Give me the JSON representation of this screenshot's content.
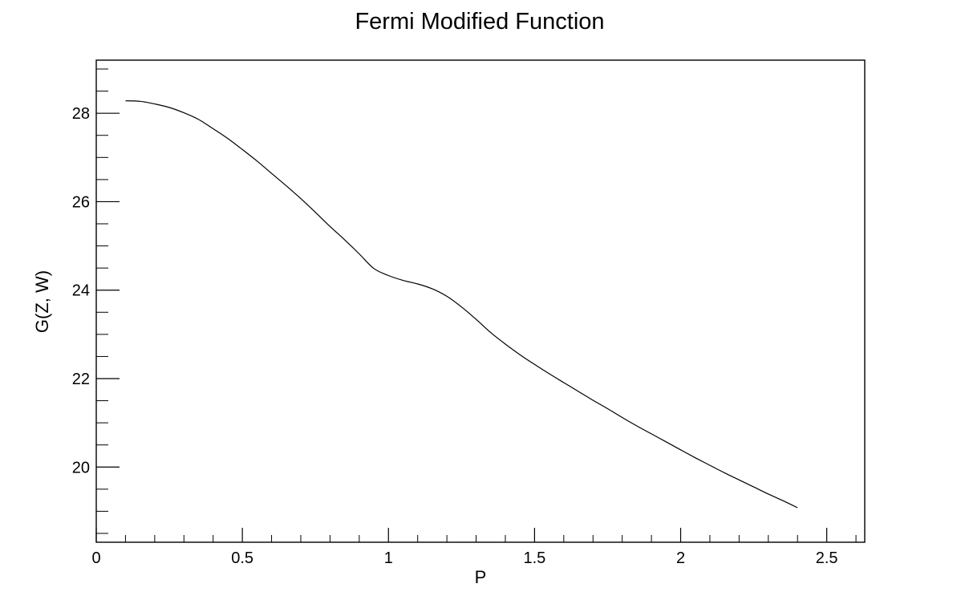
{
  "chart_data": {
    "type": "line",
    "title": "Fermi Modified Function",
    "xlabel": "P",
    "ylabel": "G(Z, W)",
    "xlim": [
      0,
      2.63
    ],
    "ylim": [
      18.3,
      29.2
    ],
    "grid": false,
    "legend": "none",
    "x_ticks": [
      0,
      0.5,
      1,
      1.5,
      2,
      2.5
    ],
    "x_tick_labels": [
      "0",
      "0.5",
      "1",
      "1.5",
      "2",
      "2.5"
    ],
    "y_ticks": [
      20,
      22,
      24,
      26,
      28
    ],
    "y_tick_labels": [
      "20",
      "22",
      "24",
      "26",
      "28"
    ],
    "series": [
      {
        "name": "",
        "color": "#000000",
        "x": [
          0.1,
          0.15,
          0.2,
          0.25,
          0.3,
          0.35,
          0.4,
          0.45,
          0.5,
          0.55,
          0.6,
          0.65,
          0.7,
          0.75,
          0.8,
          0.85,
          0.9,
          0.95,
          1.0,
          1.05,
          1.1,
          1.15,
          1.2,
          1.25,
          1.3,
          1.35,
          1.4,
          1.45,
          1.5,
          1.55,
          1.6,
          1.65,
          1.7,
          1.75,
          1.8,
          1.85,
          1.9,
          1.95,
          2.0,
          2.05,
          2.1,
          2.15,
          2.2,
          2.25,
          2.3,
          2.35,
          2.4
        ],
        "y": [
          28.28,
          28.27,
          28.21,
          28.13,
          28.01,
          27.86,
          27.65,
          27.43,
          27.18,
          26.92,
          26.64,
          26.36,
          26.07,
          25.76,
          25.44,
          25.14,
          24.82,
          24.49,
          24.33,
          24.22,
          24.14,
          24.03,
          23.86,
          23.62,
          23.34,
          23.04,
          22.78,
          22.54,
          22.32,
          22.11,
          21.91,
          21.71,
          21.51,
          21.32,
          21.12,
          20.93,
          20.75,
          20.57,
          20.39,
          20.21,
          20.04,
          19.87,
          19.71,
          19.55,
          19.39,
          19.24,
          19.08
        ]
      }
    ]
  }
}
